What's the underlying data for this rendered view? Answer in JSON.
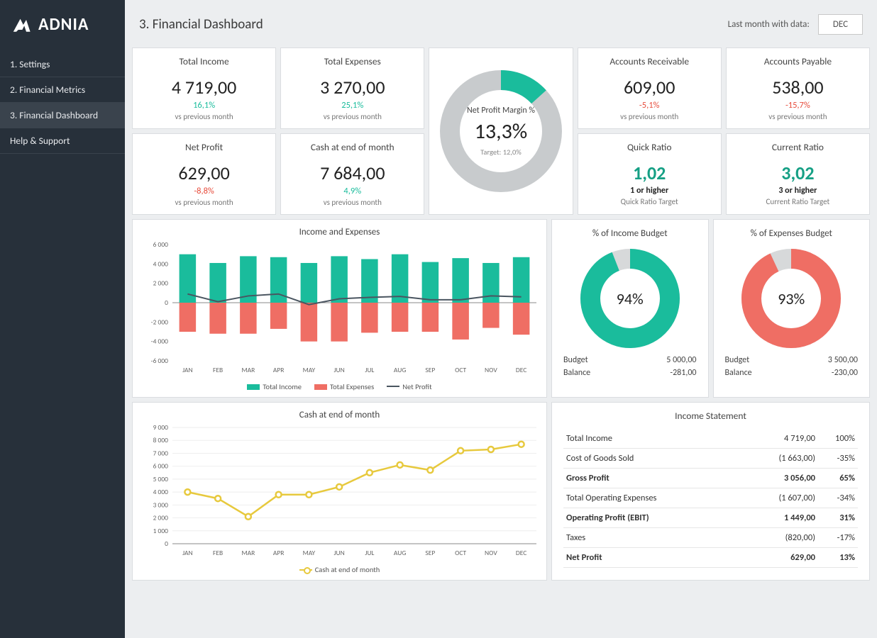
{
  "brand": "ADNIA",
  "page_title": "3. Financial Dashboard",
  "last_month_label": "Last month with data:",
  "last_month_value": "DEC",
  "nav": [
    {
      "label": "1. Settings",
      "key": "settings"
    },
    {
      "label": "2. Financial Metrics",
      "key": "metrics"
    },
    {
      "label": "3. Financial Dashboard",
      "key": "dashboard",
      "active": true
    },
    {
      "label": "Help & Support",
      "key": "help"
    }
  ],
  "colors": {
    "teal": "#1abc9c",
    "red": "#ef6e64",
    "grey": "#c8cbcd",
    "darkline": "#4a5560",
    "yellow": "#e7c93d",
    "bg": "#eceef0",
    "sidebar": "#27303a"
  },
  "kpis": {
    "total_income": {
      "title": "Total Income",
      "value": "4 719,00",
      "delta": "16,1%",
      "delta_pos": true,
      "sub": "vs previous month"
    },
    "total_expenses": {
      "title": "Total Expenses",
      "value": "3 270,00",
      "delta": "25,1%",
      "delta_pos": true,
      "sub": "vs previous month"
    },
    "accounts_receivable": {
      "title": "Accounts Receivable",
      "value": "609,00",
      "delta": "-5,1%",
      "delta_pos": false,
      "sub": "vs previous month"
    },
    "accounts_payable": {
      "title": "Accounts Payable",
      "value": "538,00",
      "delta": "-15,7%",
      "delta_pos": false,
      "sub": "vs previous month"
    },
    "net_profit": {
      "title": "Net Profit",
      "value": "629,00",
      "delta": "-8,8%",
      "delta_pos": false,
      "sub": "vs previous month"
    },
    "cash_eom": {
      "title": "Cash at end of month",
      "value": "7 684,00",
      "delta": "4,9%",
      "delta_pos": true,
      "sub": "vs previous month"
    },
    "quick_ratio": {
      "title": "Quick Ratio",
      "value": "1,02",
      "note": "1 or higher",
      "sub": "Quick Ratio Target"
    },
    "current_ratio": {
      "title": "Current Ratio",
      "value": "3,02",
      "note": "3 or higher",
      "sub": "Current Ratio Target"
    }
  },
  "gauge": {
    "label": "Net Profit Margin %",
    "value": "13,3%",
    "target": "Target:  12,0%",
    "percent": 13.3,
    "ring_color": "#1abc9c",
    "ring_bg": "#c8cbcd",
    "thickness": 28
  },
  "income_exp_chart": {
    "title": "Income and Expenses",
    "months": [
      "JAN",
      "FEB",
      "MAR",
      "APR",
      "MAY",
      "JUN",
      "JUL",
      "AUG",
      "SEP",
      "OCT",
      "NOV",
      "DEC"
    ],
    "income": [
      5000,
      4100,
      4800,
      4700,
      4100,
      4800,
      4500,
      5000,
      4200,
      4600,
      4100,
      4700
    ],
    "expenses": [
      -3000,
      -3200,
      -3200,
      -2700,
      -4000,
      -4000,
      -3100,
      -3000,
      -3000,
      -3800,
      -2600,
      -3300
    ],
    "netprofit": [
      900,
      100,
      700,
      900,
      -200,
      400,
      550,
      650,
      300,
      300,
      700,
      600
    ],
    "ymin": -6000,
    "ymax": 6000,
    "ystep": 2000,
    "income_color": "#1abc9c",
    "expense_color": "#ef6e64",
    "line_color": "#4a5560",
    "bar_width": 0.55,
    "legend": [
      "Total Income",
      "Total Expenses",
      "Net Profit"
    ]
  },
  "cash_chart": {
    "title": "Cash at end of month",
    "months": [
      "JAN",
      "FEB",
      "MAR",
      "APR",
      "MAY",
      "JUN",
      "JUL",
      "AUG",
      "SEP",
      "OCT",
      "NOV",
      "DEC"
    ],
    "values": [
      4000,
      3500,
      2100,
      3800,
      3800,
      4400,
      5500,
      6100,
      5700,
      7200,
      7300,
      7700
    ],
    "ymin": 0,
    "ymax": 9000,
    "ystep": 1000,
    "line_color": "#e7c93d",
    "marker_fill": "#ffffff",
    "legend": "Cash at end of month"
  },
  "income_budget": {
    "title": "% of Income Budget",
    "percent": 94,
    "color": "#1abc9c",
    "rest_color": "#d7d9da",
    "budget_label": "Budget",
    "budget_value": "5 000,00",
    "balance_label": "Balance",
    "balance_value": "-281,00"
  },
  "expense_budget": {
    "title": "% of Expenses Budget",
    "percent": 93,
    "color": "#ef6e64",
    "rest_color": "#d7d9da",
    "budget_label": "Budget",
    "budget_value": "3 500,00",
    "balance_label": "Balance",
    "balance_value": "-230,00"
  },
  "income_statement": {
    "title": "Income Statement",
    "rows": [
      {
        "label": "Total Income",
        "value": "4 719,00",
        "pct": "100%",
        "bold": false
      },
      {
        "label": "Cost of Goods Sold",
        "value": "(1 663,00)",
        "pct": "-35%",
        "bold": false
      },
      {
        "label": "Gross Profit",
        "value": "3 056,00",
        "pct": "65%",
        "bold": true
      },
      {
        "label": "Total Operating Expenses",
        "value": "(1 607,00)",
        "pct": "-34%",
        "bold": false
      },
      {
        "label": "Operating Profit (EBIT)",
        "value": "1 449,00",
        "pct": "31%",
        "bold": true
      },
      {
        "label": "Taxes",
        "value": "(820,00)",
        "pct": "-17%",
        "bold": false
      },
      {
        "label": "Net Profit",
        "value": "629,00",
        "pct": "13%",
        "bold": true
      }
    ]
  }
}
